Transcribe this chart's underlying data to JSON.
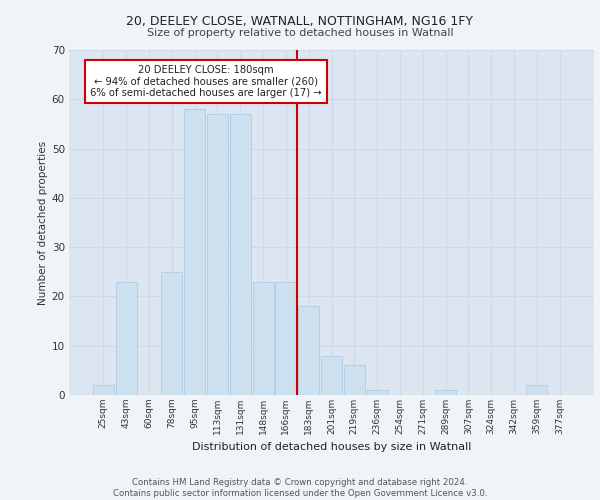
{
  "title1": "20, DEELEY CLOSE, WATNALL, NOTTINGHAM, NG16 1FY",
  "title2": "Size of property relative to detached houses in Watnall",
  "xlabel": "Distribution of detached houses by size in Watnall",
  "ylabel": "Number of detached properties",
  "categories": [
    "25sqm",
    "43sqm",
    "60sqm",
    "78sqm",
    "95sqm",
    "113sqm",
    "131sqm",
    "148sqm",
    "166sqm",
    "183sqm",
    "201sqm",
    "219sqm",
    "236sqm",
    "254sqm",
    "271sqm",
    "289sqm",
    "307sqm",
    "324sqm",
    "342sqm",
    "359sqm",
    "377sqm"
  ],
  "values": [
    2,
    23,
    0,
    25,
    58,
    57,
    57,
    23,
    23,
    18,
    8,
    6,
    1,
    0,
    0,
    1,
    0,
    0,
    0,
    2,
    0
  ],
  "bar_color": "#cce0f0",
  "bar_edge_color": "#aac8e0",
  "vline_color": "#cc0000",
  "annotation_text": "20 DEELEY CLOSE: 180sqm\n← 94% of detached houses are smaller (260)\n6% of semi-detached houses are larger (17) →",
  "ylim": [
    0,
    70
  ],
  "yticks": [
    0,
    10,
    20,
    30,
    40,
    50,
    60,
    70
  ],
  "grid_color": "#d0d8e8",
  "background_color": "#dce6f0",
  "fig_background": "#f0f4f8",
  "footer": "Contains HM Land Registry data © Crown copyright and database right 2024.\nContains public sector information licensed under the Open Government Licence v3.0."
}
